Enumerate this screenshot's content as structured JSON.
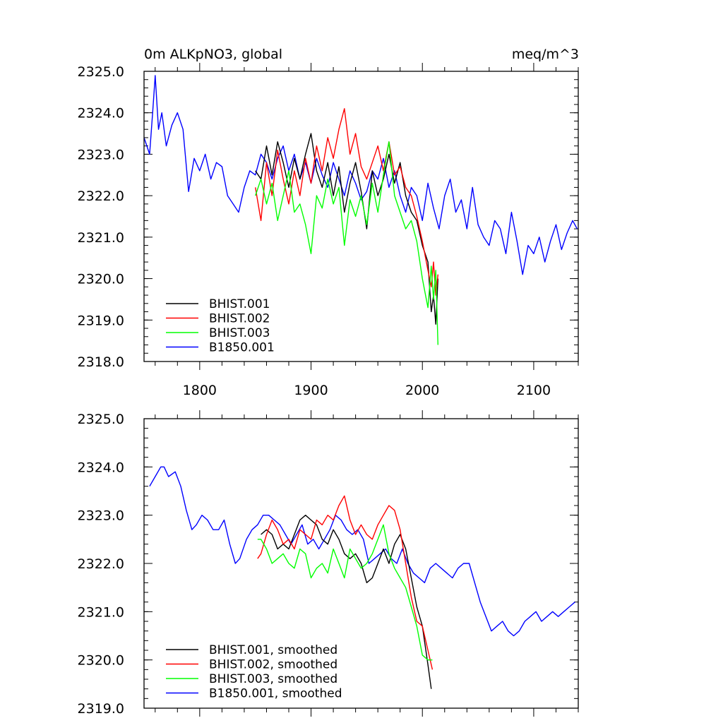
{
  "chart_data": [
    {
      "type": "line",
      "title": "0m ALKpNO3, global",
      "units": "meq/m^3",
      "xlim": [
        1750,
        2140
      ],
      "ylim": [
        2318,
        2325
      ],
      "x_ticks": [
        1800,
        1900,
        2000,
        2100
      ],
      "x_tick_labels": [
        "1800",
        "1900",
        "2000",
        "2100"
      ],
      "y_ticks": [
        2318,
        2319,
        2320,
        2321,
        2322,
        2323,
        2324,
        2325
      ],
      "y_tick_labels": [
        "2318.0",
        "2319.0",
        "2320.0",
        "2321.0",
        "2322.0",
        "2323.0",
        "2324.0",
        "2325.0"
      ],
      "legend_position": "bottom-left",
      "series": [
        {
          "name": "BHIST.001",
          "color": "#000000",
          "x": [
            1850,
            1855,
            1860,
            1865,
            1870,
            1875,
            1880,
            1885,
            1890,
            1895,
            1900,
            1905,
            1910,
            1915,
            1920,
            1925,
            1930,
            1935,
            1940,
            1945,
            1950,
            1955,
            1960,
            1965,
            1970,
            1975,
            1980,
            1985,
            1990,
            1995,
            2000,
            2005,
            2008,
            2010,
            2012,
            2014
          ],
          "y": [
            2322.6,
            2322.4,
            2323.2,
            2322.5,
            2323.3,
            2322.8,
            2322.2,
            2322.9,
            2322.4,
            2323.0,
            2323.5,
            2322.6,
            2322.2,
            2322.8,
            2322.0,
            2322.7,
            2321.6,
            2322.3,
            2322.8,
            2322.1,
            2321.2,
            2322.6,
            2322.0,
            2322.4,
            2323.0,
            2322.3,
            2322.8,
            2322.0,
            2321.6,
            2321.4,
            2320.8,
            2320.4,
            2319.2,
            2319.6,
            2318.9,
            2320.0
          ]
        },
        {
          "name": "BHIST.002",
          "color": "#ff0000",
          "x": [
            1850,
            1855,
            1860,
            1865,
            1870,
            1875,
            1880,
            1885,
            1890,
            1895,
            1900,
            1905,
            1910,
            1915,
            1920,
            1925,
            1930,
            1935,
            1940,
            1945,
            1950,
            1955,
            1960,
            1965,
            1970,
            1975,
            1980,
            1985,
            1990,
            1995,
            2000,
            2005,
            2008,
            2010,
            2012,
            2014
          ],
          "y": [
            2322.2,
            2321.4,
            2322.8,
            2322.0,
            2323.1,
            2322.4,
            2321.8,
            2322.6,
            2322.0,
            2322.9,
            2322.3,
            2323.2,
            2322.6,
            2323.4,
            2322.9,
            2323.6,
            2324.1,
            2323.0,
            2323.5,
            2322.7,
            2322.4,
            2322.8,
            2323.2,
            2322.6,
            2323.3,
            2322.5,
            2322.7,
            2322.2,
            2322.0,
            2321.5,
            2320.9,
            2320.2,
            2319.8,
            2320.4,
            2319.6,
            2320.1
          ]
        },
        {
          "name": "BHIST.003",
          "color": "#00ff00",
          "x": [
            1850,
            1855,
            1860,
            1865,
            1870,
            1875,
            1880,
            1885,
            1890,
            1895,
            1900,
            1905,
            1910,
            1915,
            1920,
            1925,
            1930,
            1935,
            1940,
            1945,
            1950,
            1955,
            1960,
            1965,
            1970,
            1975,
            1980,
            1985,
            1990,
            1995,
            2000,
            2005,
            2008,
            2010,
            2012,
            2014
          ],
          "y": [
            2322.0,
            2322.4,
            2321.8,
            2322.3,
            2321.4,
            2322.0,
            2322.6,
            2321.6,
            2321.8,
            2321.3,
            2320.6,
            2322.0,
            2321.7,
            2322.4,
            2321.8,
            2322.2,
            2320.8,
            2321.9,
            2321.5,
            2322.0,
            2321.3,
            2322.3,
            2321.6,
            2322.5,
            2323.3,
            2322.0,
            2321.6,
            2321.2,
            2321.4,
            2320.9,
            2320.0,
            2319.3,
            2320.3,
            2319.5,
            2320.2,
            2318.4
          ]
        },
        {
          "name": "B1850.001",
          "color": "#0000ff",
          "x": [
            1750,
            1755,
            1758,
            1760,
            1763,
            1766,
            1770,
            1775,
            1780,
            1785,
            1790,
            1795,
            1800,
            1805,
            1810,
            1815,
            1820,
            1825,
            1830,
            1835,
            1840,
            1845,
            1850,
            1855,
            1860,
            1865,
            1870,
            1875,
            1880,
            1885,
            1890,
            1895,
            1900,
            1905,
            1910,
            1915,
            1920,
            1925,
            1930,
            1935,
            1940,
            1945,
            1950,
            1955,
            1960,
            1965,
            1970,
            1975,
            1980,
            1985,
            1990,
            1995,
            2000,
            2005,
            2010,
            2015,
            2020,
            2025,
            2030,
            2035,
            2040,
            2045,
            2050,
            2055,
            2060,
            2065,
            2070,
            2075,
            2080,
            2085,
            2090,
            2095,
            2100,
            2105,
            2110,
            2115,
            2120,
            2125,
            2130,
            2135,
            2139
          ],
          "y": [
            2323.4,
            2323.0,
            2324.1,
            2324.9,
            2323.6,
            2324.0,
            2323.2,
            2323.7,
            2324.0,
            2323.6,
            2322.1,
            2322.9,
            2322.6,
            2323.0,
            2322.4,
            2322.8,
            2322.7,
            2322.0,
            2321.8,
            2321.6,
            2322.2,
            2322.6,
            2322.5,
            2323.0,
            2322.8,
            2322.4,
            2322.9,
            2323.2,
            2322.6,
            2323.0,
            2322.4,
            2322.8,
            2322.3,
            2322.9,
            2322.5,
            2322.2,
            2322.8,
            2322.4,
            2322.0,
            2322.6,
            2322.3,
            2321.9,
            2322.1,
            2322.6,
            2322.4,
            2322.9,
            2322.2,
            2322.6,
            2322.0,
            2321.6,
            2322.2,
            2322.0,
            2321.4,
            2322.3,
            2321.7,
            2321.2,
            2322.0,
            2322.4,
            2321.6,
            2321.9,
            2321.2,
            2322.2,
            2321.3,
            2321.0,
            2320.8,
            2321.4,
            2321.2,
            2320.6,
            2321.6,
            2320.9,
            2320.1,
            2320.8,
            2320.6,
            2321.0,
            2320.4,
            2320.9,
            2321.3,
            2320.7,
            2321.1,
            2321.4,
            2321.2
          ]
        }
      ]
    },
    {
      "type": "line",
      "title": "",
      "xlim": [
        1750,
        2140
      ],
      "ylim": [
        2319,
        2325
      ],
      "x_ticks": [
        1800,
        1900,
        2000,
        2100
      ],
      "y_ticks": [
        2319,
        2320,
        2321,
        2322,
        2323,
        2324,
        2325
      ],
      "y_tick_labels": [
        "2319.0",
        "2320.0",
        "2321.0",
        "2322.0",
        "2323.0",
        "2324.0",
        "2325.0"
      ],
      "legend_position": "bottom-left",
      "series": [
        {
          "name": "BHIST.001, smoothed",
          "color": "#000000",
          "x": [
            1855,
            1860,
            1865,
            1870,
            1875,
            1880,
            1885,
            1890,
            1895,
            1900,
            1905,
            1910,
            1915,
            1920,
            1925,
            1930,
            1935,
            1940,
            1945,
            1950,
            1955,
            1960,
            1965,
            1970,
            1975,
            1980,
            1985,
            1990,
            1995,
            2000,
            2005,
            2008
          ],
          "y": [
            2322.6,
            2322.7,
            2322.6,
            2322.3,
            2322.4,
            2322.3,
            2322.6,
            2322.9,
            2323.0,
            2322.9,
            2322.8,
            2322.5,
            2322.4,
            2322.7,
            2322.5,
            2322.2,
            2322.1,
            2322.2,
            2322.0,
            2321.6,
            2321.7,
            2322.0,
            2322.3,
            2322.0,
            2322.4,
            2322.6,
            2322.3,
            2321.7,
            2321.1,
            2320.7,
            2319.9,
            2319.4
          ]
        },
        {
          "name": "BHIST.002, smoothed",
          "color": "#ff0000",
          "x": [
            1852,
            1855,
            1860,
            1865,
            1870,
            1875,
            1880,
            1885,
            1890,
            1895,
            1900,
            1905,
            1910,
            1915,
            1920,
            1925,
            1930,
            1935,
            1940,
            1945,
            1950,
            1955,
            1960,
            1965,
            1970,
            1975,
            1980,
            1985,
            1990,
            1995,
            2000,
            2005,
            2009
          ],
          "y": [
            2322.1,
            2322.2,
            2322.6,
            2322.9,
            2322.7,
            2322.4,
            2322.5,
            2322.3,
            2322.7,
            2322.6,
            2322.5,
            2322.9,
            2322.8,
            2323.0,
            2322.9,
            2323.2,
            2323.4,
            2322.9,
            2322.6,
            2322.8,
            2322.6,
            2322.5,
            2322.8,
            2323.0,
            2323.2,
            2323.1,
            2322.7,
            2322.0,
            2321.3,
            2320.8,
            2320.7,
            2320.2,
            2319.8
          ]
        },
        {
          "name": "BHIST.003, smoothed",
          "color": "#00ff00",
          "x": [
            1852,
            1855,
            1860,
            1865,
            1870,
            1875,
            1880,
            1885,
            1890,
            1895,
            1900,
            1905,
            1910,
            1915,
            1920,
            1925,
            1930,
            1935,
            1940,
            1945,
            1950,
            1955,
            1960,
            1965,
            1970,
            1975,
            1980,
            1985,
            1990,
            1995,
            2000,
            2005,
            2009
          ],
          "y": [
            2322.5,
            2322.5,
            2322.3,
            2322.0,
            2322.1,
            2322.2,
            2322.0,
            2321.9,
            2322.3,
            2322.2,
            2321.7,
            2321.9,
            2322.0,
            2321.8,
            2322.3,
            2322.0,
            2321.7,
            2322.3,
            2322.1,
            2321.9,
            2322.0,
            2322.2,
            2322.5,
            2322.8,
            2322.2,
            2321.9,
            2321.7,
            2321.5,
            2321.1,
            2320.7,
            2320.1,
            2320.0,
            2320.0
          ]
        },
        {
          "name": "B1850.001, smoothed",
          "color": "#0000ff",
          "x": [
            1755,
            1760,
            1765,
            1768,
            1772,
            1778,
            1783,
            1788,
            1793,
            1797,
            1802,
            1807,
            1812,
            1817,
            1822,
            1827,
            1832,
            1836,
            1842,
            1847,
            1852,
            1857,
            1862,
            1867,
            1872,
            1877,
            1882,
            1887,
            1892,
            1897,
            1902,
            1907,
            1912,
            1917,
            1922,
            1927,
            1932,
            1937,
            1942,
            1947,
            1952,
            1957,
            1962,
            1967,
            1972,
            1977,
            1982,
            1987,
            1992,
            1997,
            2002,
            2007,
            2012,
            2017,
            2022,
            2027,
            2032,
            2037,
            2042,
            2047,
            2052,
            2057,
            2062,
            2067,
            2072,
            2077,
            2082,
            2087,
            2092,
            2097,
            2102,
            2107,
            2112,
            2117,
            2122,
            2127,
            2132,
            2137
          ],
          "y": [
            2323.6,
            2323.8,
            2324.0,
            2324.0,
            2323.8,
            2323.9,
            2323.6,
            2323.1,
            2322.7,
            2322.8,
            2323.0,
            2322.9,
            2322.7,
            2322.7,
            2322.9,
            2322.4,
            2322.0,
            2322.1,
            2322.5,
            2322.7,
            2322.8,
            2323.0,
            2323.0,
            2322.9,
            2322.8,
            2322.6,
            2322.4,
            2322.6,
            2322.8,
            2322.4,
            2322.5,
            2322.3,
            2322.5,
            2322.7,
            2323.0,
            2322.9,
            2322.7,
            2322.6,
            2322.7,
            2322.5,
            2322.0,
            2322.1,
            2322.2,
            2322.3,
            2322.1,
            2322.0,
            2322.3,
            2322.0,
            2321.8,
            2321.7,
            2321.6,
            2321.9,
            2322.0,
            2321.9,
            2321.8,
            2321.7,
            2321.9,
            2322.0,
            2322.0,
            2321.6,
            2321.2,
            2320.9,
            2320.6,
            2320.7,
            2320.8,
            2320.6,
            2320.5,
            2320.6,
            2320.8,
            2320.9,
            2321.0,
            2320.8,
            2320.9,
            2321.0,
            2320.9,
            2321.0,
            2321.1,
            2321.2
          ]
        }
      ]
    }
  ]
}
